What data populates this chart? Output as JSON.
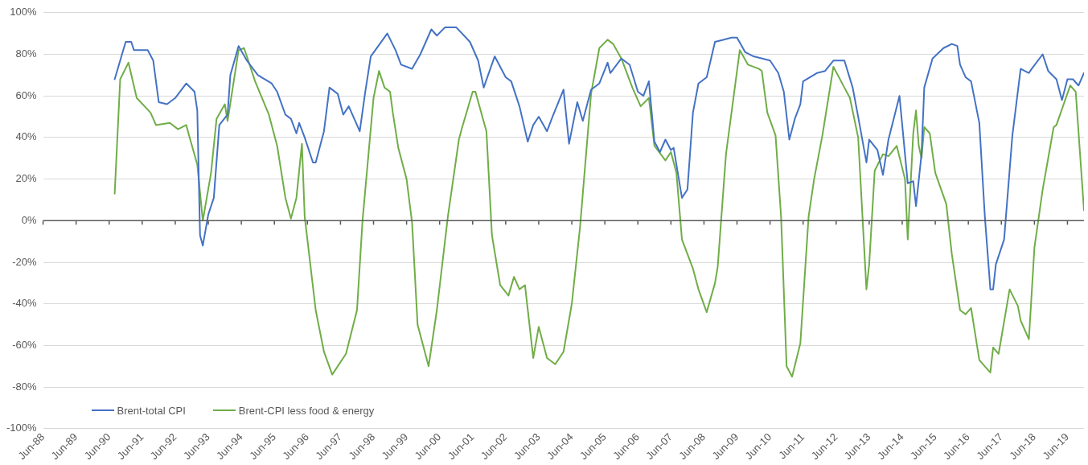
{
  "chart_data": {
    "type": "line",
    "legend": "bottom left",
    "grid": "y",
    "marker": "none",
    "line_style": "solid",
    "xlim": [
      "1988-06",
      "2019-12"
    ],
    "xticks": [
      {
        "value": "1988-06",
        "label": "Jun-88"
      },
      {
        "value": "1989-06",
        "label": "Jun-89"
      },
      {
        "value": "1990-06",
        "label": "Jun-90"
      },
      {
        "value": "1991-06",
        "label": "Jun-91"
      },
      {
        "value": "1992-06",
        "label": "Jun-92"
      },
      {
        "value": "1993-06",
        "label": "Jun-93"
      },
      {
        "value": "1994-06",
        "label": "Jun-94"
      },
      {
        "value": "1995-06",
        "label": "Jun-95"
      },
      {
        "value": "1996-06",
        "label": "Jun-96"
      },
      {
        "value": "1997-06",
        "label": "Jun-97"
      },
      {
        "value": "1998-06",
        "label": "Jun-98"
      },
      {
        "value": "1999-06",
        "label": "Jun-99"
      },
      {
        "value": "2000-06",
        "label": "Jun-00"
      },
      {
        "value": "2001-06",
        "label": "Jun-01"
      },
      {
        "value": "2002-06",
        "label": "Jun-02"
      },
      {
        "value": "2003-06",
        "label": "Jun-03"
      },
      {
        "value": "2004-06",
        "label": "Jun-04"
      },
      {
        "value": "2005-06",
        "label": "Jun-05"
      },
      {
        "value": "2006-06",
        "label": "Jun-06"
      },
      {
        "value": "2007-06",
        "label": "Jun-07"
      },
      {
        "value": "2008-06",
        "label": "Jun-08"
      },
      {
        "value": "2009-06",
        "label": "Jun-09"
      },
      {
        "value": "2010-06",
        "label": "Jun-10"
      },
      {
        "value": "2011-06",
        "label": "Jun-11"
      },
      {
        "value": "2012-06",
        "label": "Jun-12"
      },
      {
        "value": "2013-06",
        "label": "Jun-13"
      },
      {
        "value": "2014-06",
        "label": "Jun-14"
      },
      {
        "value": "2015-06",
        "label": "Jun-15"
      },
      {
        "value": "2016-06",
        "label": "Jun-16"
      },
      {
        "value": "2017-06",
        "label": "Jun-17"
      },
      {
        "value": "2018-06",
        "label": "Jun-18"
      },
      {
        "value": "2019-06",
        "label": "Jun-19"
      }
    ],
    "ylim": [
      -100,
      100
    ],
    "yticks": [
      {
        "value": -100,
        "label": "-100%"
      },
      {
        "value": -80,
        "label": "-80%"
      },
      {
        "value": -60,
        "label": "-60%"
      },
      {
        "value": -40,
        "label": "-40%"
      },
      {
        "value": -20,
        "label": "-20%"
      },
      {
        "value": 0,
        "label": "0%"
      },
      {
        "value": 20,
        "label": "20%"
      },
      {
        "value": 40,
        "label": "40%"
      },
      {
        "value": 60,
        "label": "60%"
      },
      {
        "value": 80,
        "label": "80%"
      },
      {
        "value": 100,
        "label": "100%"
      }
    ],
    "series": [
      {
        "name": "Brent-total CPI",
        "color": "#4472c4",
        "x": [
          "1990-08",
          "1990-12",
          "1991-02",
          "1991-03",
          "1991-08",
          "1991-10",
          "1991-12",
          "1992-03",
          "1992-06",
          "1992-10",
          "1993-01",
          "1993-02",
          "1993-03",
          "1993-04",
          "1993-06",
          "1993-08",
          "1993-10",
          "1994-01",
          "1994-02",
          "1994-05",
          "1994-08",
          "1994-12",
          "1995-05",
          "1995-07",
          "1995-10",
          "1995-12",
          "1996-02",
          "1996-03",
          "1996-05",
          "1996-08",
          "1996-09",
          "1996-12",
          "1997-02",
          "1997-05",
          "1997-07",
          "1997-09",
          "1998-01",
          "1998-03",
          "1998-05",
          "1998-11",
          "1999-02",
          "1999-04",
          "1999-08",
          "1999-11",
          "2000-03",
          "2000-05",
          "2000-08",
          "2000-12",
          "2001-05",
          "2001-08",
          "2001-10",
          "2002-02",
          "2002-06",
          "2002-08",
          "2002-11",
          "2003-02",
          "2003-04",
          "2003-06",
          "2003-09",
          "2003-11",
          "2004-03",
          "2004-05",
          "2004-08",
          "2004-10",
          "2005-01",
          "2005-04",
          "2005-07",
          "2005-08",
          "2005-12",
          "2006-03",
          "2006-06",
          "2006-08",
          "2006-10",
          "2006-12",
          "2007-02",
          "2007-04",
          "2007-06",
          "2007-07",
          "2007-10",
          "2007-12",
          "2008-02",
          "2008-04",
          "2008-07",
          "2008-10",
          "2009-01",
          "2009-04",
          "2009-06",
          "2009-09",
          "2009-12",
          "2010-06",
          "2010-09",
          "2010-11",
          "2011-01",
          "2011-03",
          "2011-05",
          "2011-06",
          "2011-11",
          "2012-02",
          "2012-05",
          "2012-09",
          "2012-12",
          "2013-02",
          "2013-05",
          "2013-06",
          "2013-09",
          "2013-11",
          "2014-01",
          "2014-05",
          "2014-08",
          "2014-10",
          "2014-11",
          "2015-01",
          "2015-02",
          "2015-05",
          "2015-09",
          "2015-12",
          "2016-02",
          "2016-03",
          "2016-05",
          "2016-07",
          "2016-10",
          "2016-12",
          "2017-02",
          "2017-03",
          "2017-04",
          "2017-07",
          "2017-10",
          "2018-01",
          "2018-04",
          "2018-05",
          "2018-09",
          "2018-11",
          "2019-02",
          "2019-04",
          "2019-06",
          "2019-08",
          "2019-10",
          "2019-12"
        ],
        "values": [
          68,
          86,
          86,
          82,
          82,
          77,
          57,
          56,
          59,
          66,
          62,
          53,
          -7,
          -12,
          3,
          11,
          46,
          51,
          70,
          84,
          77,
          70,
          66,
          62,
          51,
          49,
          42,
          47,
          40,
          28,
          28,
          43,
          64,
          61,
          51,
          55,
          43,
          62,
          79,
          90,
          82,
          75,
          73,
          80,
          92,
          89,
          93,
          93,
          86,
          77,
          64,
          79,
          69,
          67,
          55,
          38,
          46,
          50,
          43,
          50,
          63,
          37,
          57,
          48,
          63,
          66,
          76,
          71,
          78,
          75,
          62,
          60,
          67,
          38,
          33,
          39,
          34,
          35,
          11,
          15,
          52,
          66,
          69,
          86,
          87,
          88,
          88,
          81,
          79,
          77,
          71,
          62,
          39,
          49,
          56,
          67,
          71,
          72,
          77,
          77,
          64,
          50,
          28,
          39,
          34,
          22,
          39,
          60,
          18,
          19,
          7,
          32,
          64,
          78,
          83,
          85,
          84,
          75,
          69,
          67,
          47,
          2,
          -33,
          -33,
          -21,
          -9,
          41,
          73,
          71,
          73,
          80,
          72,
          68,
          58,
          68,
          68,
          65,
          71
        ]
      },
      {
        "name": "Brent-CPI less food & energy",
        "color": "#70ad47",
        "x": [
          "1990-08",
          "1990-10",
          "1991-01",
          "1991-04",
          "1991-09",
          "1991-11",
          "1992-04",
          "1992-07",
          "1992-10",
          "1992-11",
          "1993-02",
          "1993-04",
          "1993-07",
          "1993-09",
          "1993-12",
          "1994-01",
          "1994-05",
          "1994-07",
          "1994-11",
          "1995-04",
          "1995-07",
          "1995-10",
          "1995-12",
          "1996-02",
          "1996-04",
          "1996-05",
          "1996-09",
          "1996-12",
          "1997-03",
          "1997-08",
          "1997-12",
          "1998-02",
          "1998-06",
          "1998-08",
          "1998-10",
          "1998-12",
          "1999-01",
          "1999-03",
          "1999-06",
          "1999-08",
          "1999-10",
          "2000-02",
          "2000-05",
          "2000-09",
          "2001-01",
          "2001-02",
          "2001-06",
          "2001-07",
          "2001-11",
          "2002-01",
          "2002-04",
          "2002-07",
          "2002-09",
          "2002-11",
          "2003-01",
          "2003-04",
          "2003-06",
          "2003-09",
          "2003-12",
          "2004-03",
          "2004-06",
          "2004-09",
          "2005-01",
          "2005-04",
          "2005-07",
          "2005-09",
          "2005-12",
          "2006-04",
          "2006-07",
          "2006-10",
          "2006-12",
          "2007-04",
          "2007-06",
          "2007-08",
          "2007-10",
          "2008-02",
          "2008-04",
          "2008-07",
          "2008-10",
          "2008-11",
          "2009-02",
          "2009-07",
          "2009-10",
          "2010-02",
          "2010-03",
          "2010-05",
          "2010-08",
          "2010-10",
          "2010-12",
          "2011-02",
          "2011-05",
          "2011-08",
          "2011-10",
          "2012-01",
          "2012-05",
          "2012-09",
          "2012-11",
          "2013-02",
          "2013-05",
          "2013-06",
          "2013-08",
          "2013-11",
          "2014-01",
          "2014-04",
          "2014-07",
          "2014-08",
          "2014-10",
          "2014-11",
          "2014-12",
          "2015-01",
          "2015-02",
          "2015-04",
          "2015-06",
          "2015-10",
          "2015-12",
          "2016-03",
          "2016-05",
          "2016-07",
          "2016-10",
          "2017-02",
          "2017-03",
          "2017-05",
          "2017-09",
          "2017-12",
          "2018-01",
          "2018-04",
          "2018-06",
          "2018-09",
          "2019-01",
          "2019-02",
          "2019-07",
          "2019-09",
          "2019-12"
        ],
        "values": [
          13,
          68,
          76,
          59,
          52,
          46,
          47,
          44,
          46,
          41,
          27,
          0,
          23,
          49,
          56,
          48,
          82,
          83,
          67,
          51,
          36,
          11,
          1,
          11,
          37,
          2,
          -43,
          -63,
          -74,
          -64,
          -43,
          0,
          59,
          72,
          64,
          62,
          52,
          35,
          20,
          -1,
          -50,
          -70,
          -43,
          2,
          39,
          44,
          62,
          62,
          43,
          -7,
          -31,
          -36,
          -27,
          -33,
          -31,
          -66,
          -51,
          -66,
          -69,
          -63,
          -40,
          -3,
          61,
          83,
          87,
          85,
          78,
          64,
          55,
          59,
          36,
          29,
          33,
          23,
          -9,
          -23,
          -33,
          -44,
          -30,
          -22,
          32,
          82,
          75,
          73,
          72,
          52,
          41,
          2,
          -70,
          -75,
          -59,
          2,
          20,
          41,
          74,
          64,
          59,
          40,
          -33,
          -21,
          24,
          32,
          31,
          36,
          20,
          -9,
          42,
          53,
          36,
          30,
          45,
          42,
          23,
          8,
          -16,
          -43,
          -45,
          -42,
          -67,
          -73,
          -61,
          -64,
          -33,
          -41,
          -48,
          -57,
          -13,
          15,
          45,
          46,
          65,
          62,
          5
        ]
      }
    ]
  }
}
